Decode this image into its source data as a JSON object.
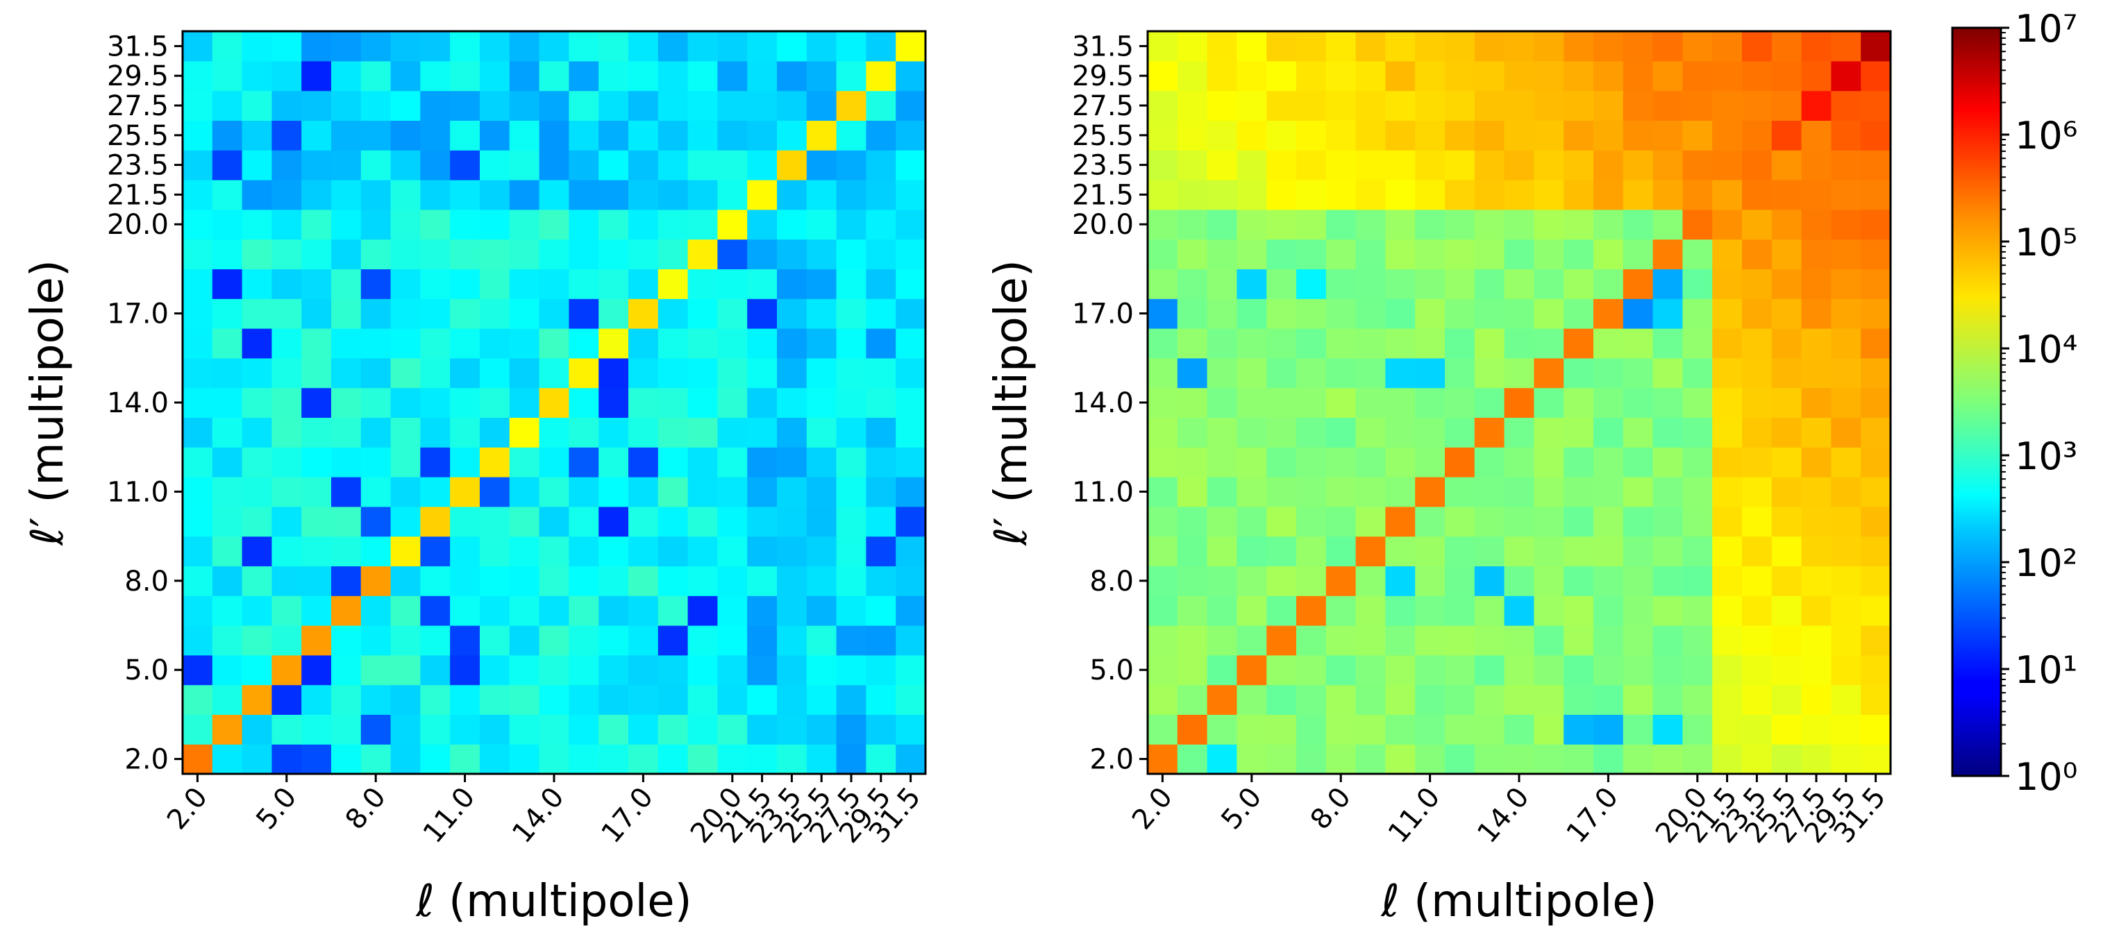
{
  "chart_data": [
    {
      "type": "heatmap",
      "panel": "left",
      "xlabel": "ℓ (multipole)",
      "ylabel": "ℓ′ (multipole)",
      "xtick_labels": [
        "2.0",
        "5.0",
        "8.0",
        "11.0",
        "14.0",
        "17.0",
        "20.0",
        "21.5",
        "23.5",
        "25.5",
        "27.5",
        "29.5",
        "31.5"
      ],
      "ytick_labels": [
        "2.0",
        "5.0",
        "8.0",
        "11.0",
        "14.0",
        "17.0",
        "20.0",
        "21.5",
        "23.5",
        "25.5",
        "27.5",
        "29.5",
        "31.5"
      ],
      "bins": [
        "2.0",
        "3.0",
        "4.0",
        "5.0",
        "6.0",
        "7.0",
        "8.0",
        "9.0",
        "10.0",
        "11.0",
        "12.0",
        "13.0",
        "14.0",
        "15.0",
        "16.0",
        "17.0",
        "18.0",
        "19.0",
        "20.0",
        "21.5",
        "23.5",
        "25.5",
        "27.5",
        "29.5",
        "31.5"
      ],
      "color_scale": "log",
      "vmin": 1,
      "vmax": 10000000,
      "description": "Covariance heatmap (off-diagonal ~1e2–1e3, diagonal ~1e5)"
    },
    {
      "type": "heatmap",
      "panel": "right",
      "xlabel": "ℓ (multipole)",
      "ylabel": "ℓ′ (multipole)",
      "xtick_labels": [
        "2.0",
        "5.0",
        "8.0",
        "11.0",
        "14.0",
        "17.0",
        "20.0",
        "21.5",
        "23.5",
        "25.5",
        "27.5",
        "29.5",
        "31.5"
      ],
      "ytick_labels": [
        "2.0",
        "5.0",
        "8.0",
        "11.0",
        "14.0",
        "17.0",
        "20.0",
        "21.5",
        "23.5",
        "25.5",
        "27.5",
        "29.5",
        "31.5"
      ],
      "bins": [
        "2.0",
        "3.0",
        "4.0",
        "5.0",
        "6.0",
        "7.0",
        "8.0",
        "9.0",
        "10.0",
        "11.0",
        "12.0",
        "13.0",
        "14.0",
        "15.0",
        "16.0",
        "17.0",
        "18.0",
        "19.0",
        "20.0",
        "21.5",
        "23.5",
        "25.5",
        "27.5",
        "29.5",
        "31.5"
      ],
      "color_scale": "log",
      "vmin": 1,
      "vmax": 10000000,
      "description": "Covariance heatmap growing toward high multipoles (up to ~1e7 at 31.5,31.5)"
    }
  ],
  "colorbar": {
    "colormap": "jet",
    "scale": "log",
    "tick_labels": [
      "10⁰",
      "10¹",
      "10²",
      "10³",
      "10⁴",
      "10⁵",
      "10⁶",
      "10⁷"
    ]
  }
}
